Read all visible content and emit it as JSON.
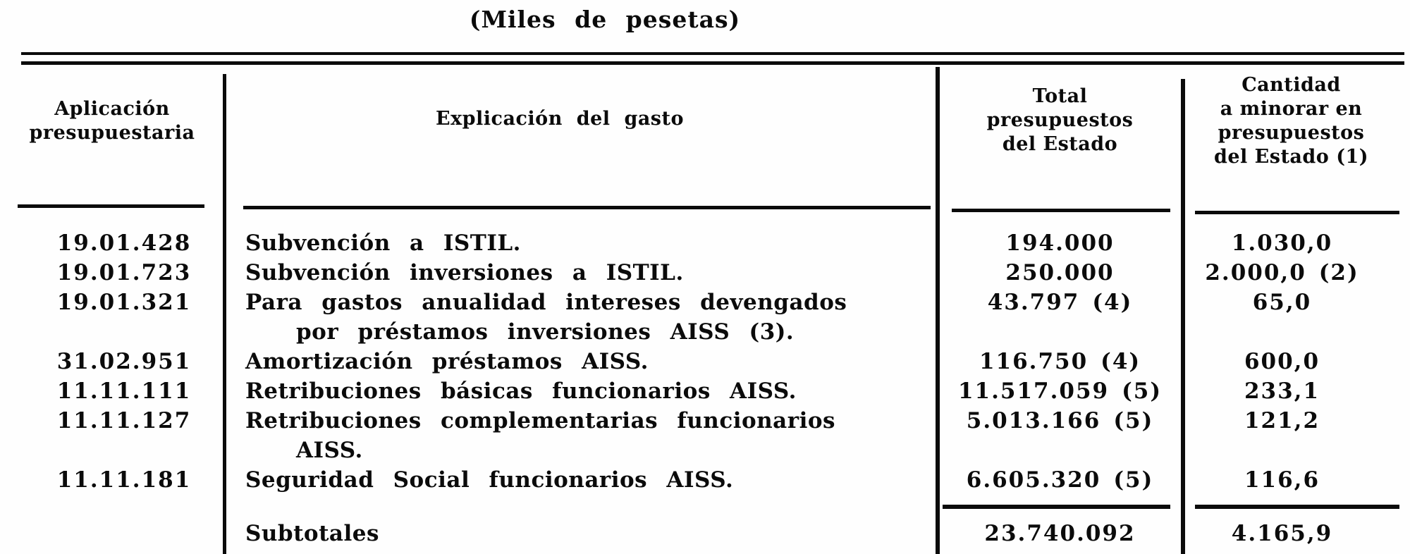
{
  "title": "(Miles de pesetas)",
  "table": {
    "columns": [
      {
        "label": "Aplicación\npresupuestaria"
      },
      {
        "label": "Explicación del gasto"
      },
      {
        "label": "Total\npresupuestos\ndel Estado"
      },
      {
        "label": "Cantidad\na minorar en\npresupuestos\ndel Estado (1)"
      }
    ],
    "rows": [
      {
        "code": "19.01.428",
        "desc": "Subvención a ISTIL.",
        "desc2": "",
        "total": "194.000",
        "total_note": "",
        "minorar": "1.030,0",
        "minorar_note": ""
      },
      {
        "code": "19.01.723",
        "desc": "Subvención inversiones a ISTIL.",
        "desc2": "",
        "total": "250.000",
        "total_note": "",
        "minorar": "2.000,0",
        "minorar_note": "(2)"
      },
      {
        "code": "19.01.321",
        "desc": "Para gastos anualidad intereses devengados",
        "desc2": "por préstamos inversiones AISS (3).",
        "total": "43.797",
        "total_note": "(4)",
        "minorar": "65,0",
        "minorar_note": ""
      },
      {
        "code": "31.02.951",
        "desc": "Amortización préstamos AISS.",
        "desc2": "",
        "total": "116.750",
        "total_note": "(4)",
        "minorar": "600,0",
        "minorar_note": ""
      },
      {
        "code": "11.11.111",
        "desc": "Retribuciones básicas funcionarios AISS.",
        "desc2": "",
        "total": "11.517.059",
        "total_note": "(5)",
        "minorar": "233,1",
        "minorar_note": ""
      },
      {
        "code": "11.11.127",
        "desc": "Retribuciones complementarias funcionarios",
        "desc2": "AISS.",
        "total": "5.013.166",
        "total_note": "(5)",
        "minorar": "121,2",
        "minorar_note": ""
      },
      {
        "code": "11.11.181",
        "desc": "Seguridad Social funcionarios AISS.",
        "desc2": "",
        "total": "6.605.320",
        "total_note": "(5)",
        "minorar": "116,6",
        "minorar_note": ""
      }
    ],
    "subtotal": {
      "label": "Subtotales",
      "total": "23.740.092",
      "minorar": "4.165,9"
    }
  }
}
